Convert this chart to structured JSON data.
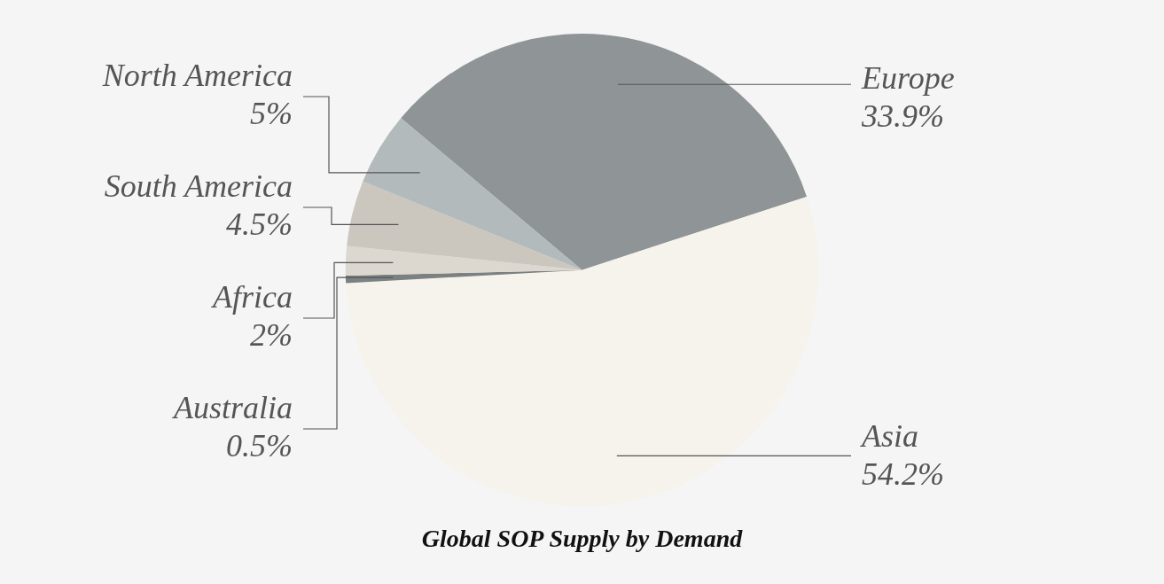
{
  "chart_data": {
    "type": "pie",
    "title": "Global SOP Supply by Demand",
    "categories": [
      "Europe",
      "Asia",
      "Australia",
      "Africa",
      "South America",
      "North America"
    ],
    "values": [
      33.9,
      54.2,
      0.5,
      2,
      4.5,
      5
    ],
    "value_labels": [
      "33.9%",
      "54.2%",
      "0.5%",
      "2%",
      "4.5%",
      "5%"
    ],
    "colors": [
      "#8f9496",
      "#f5f3ec",
      "#7b8080",
      "#dcd8d0",
      "#cbc6be",
      "#b3babb"
    ],
    "legend": false
  }
}
